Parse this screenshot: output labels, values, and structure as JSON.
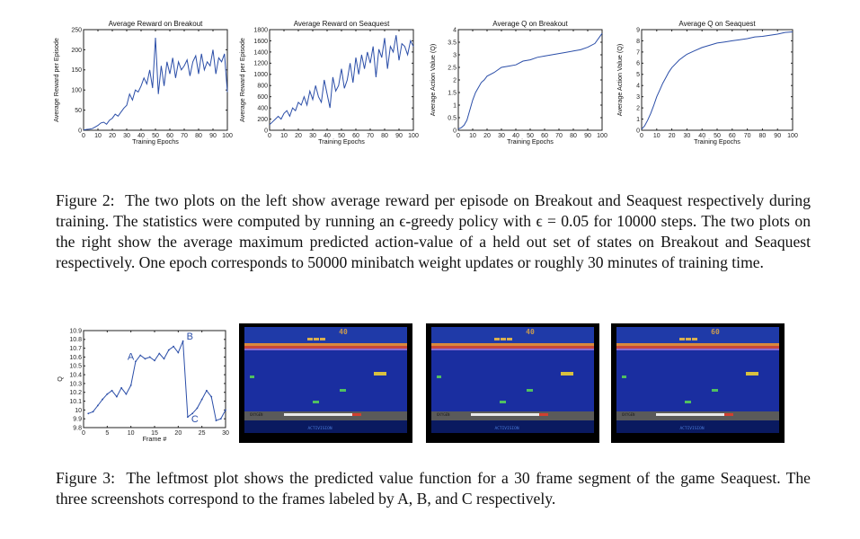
{
  "figure2": {
    "caption_label": "Figure 2:",
    "caption_text": "The two plots on the left show average reward per episode on Breakout and Seaquest respectively during training. The statistics were computed by running an ϵ-greedy policy with ϵ = 0.05 for 10000 steps. The two plots on the right show the average maximum predicted action-value of a held out set of states on Breakout and Seaquest respectively. One epoch corresponds to 50000 minibatch weight updates or roughly 30 minutes of training time."
  },
  "figure3": {
    "caption_label": "Figure 3:",
    "caption_text": "The leftmost plot shows the predicted value function for a 30 frame segment of the game Seaquest. The three screenshots correspond to the frames labeled by A, B, and C respectively."
  },
  "screenshots": [
    {
      "score": "40",
      "oxygen_label": "OXYGEN",
      "brand": "ACTIVISION"
    },
    {
      "score": "40",
      "oxygen_label": "OXYGEN",
      "brand": "ACTIVISION"
    },
    {
      "score": "60",
      "oxygen_label": "OXYGEN",
      "brand": "ACTIVISION"
    }
  ],
  "colors": {
    "series": "#2b4ea8",
    "sky": "#1f3aa8",
    "water": "#1a2ea0",
    "sunset_red": "#c8463a",
    "sunset_orange": "#d98a3c",
    "seabed": "#5a5a5a"
  },
  "chart_data": [
    {
      "type": "line",
      "title": "Average Reward on Breakout",
      "xlabel": "Training Epochs",
      "ylabel": "Average Reward per Episode",
      "xlim": [
        0,
        100
      ],
      "ylim": [
        0,
        250
      ],
      "xticks": [
        0,
        10,
        20,
        30,
        40,
        50,
        60,
        70,
        80,
        90,
        100
      ],
      "yticks": [
        0,
        50,
        100,
        150,
        200,
        250
      ],
      "x": [
        0,
        2,
        4,
        6,
        8,
        10,
        12,
        14,
        16,
        18,
        20,
        22,
        24,
        26,
        28,
        30,
        32,
        34,
        36,
        38,
        40,
        42,
        44,
        46,
        48,
        50,
        52,
        54,
        56,
        58,
        60,
        62,
        64,
        66,
        68,
        70,
        72,
        74,
        76,
        78,
        80,
        82,
        84,
        86,
        88,
        90,
        92,
        94,
        96,
        98,
        100
      ],
      "values": [
        1,
        2,
        3,
        4,
        8,
        12,
        18,
        20,
        15,
        25,
        30,
        40,
        35,
        45,
        55,
        62,
        90,
        75,
        100,
        95,
        110,
        130,
        115,
        150,
        105,
        230,
        90,
        160,
        110,
        170,
        140,
        180,
        130,
        170,
        150,
        160,
        175,
        135,
        170,
        185,
        140,
        190,
        150,
        170,
        160,
        200,
        140,
        180,
        170,
        190,
        95
      ]
    },
    {
      "type": "line",
      "title": "Average Reward on Seaquest",
      "xlabel": "Training Epochs",
      "ylabel": "Average Reward per Episode",
      "xlim": [
        0,
        100
      ],
      "ylim": [
        0,
        1800
      ],
      "xticks": [
        0,
        10,
        20,
        30,
        40,
        50,
        60,
        70,
        80,
        90,
        100
      ],
      "yticks": [
        0,
        200,
        400,
        600,
        800,
        1000,
        1200,
        1400,
        1600,
        1800
      ],
      "x": [
        0,
        2,
        4,
        6,
        8,
        10,
        12,
        14,
        16,
        18,
        20,
        22,
        24,
        26,
        28,
        30,
        32,
        34,
        36,
        38,
        40,
        42,
        44,
        46,
        48,
        50,
        52,
        54,
        56,
        58,
        60,
        62,
        64,
        66,
        68,
        70,
        72,
        74,
        76,
        78,
        80,
        82,
        84,
        86,
        88,
        90,
        92,
        94,
        96,
        98,
        100
      ],
      "values": [
        100,
        150,
        200,
        250,
        200,
        300,
        350,
        250,
        400,
        350,
        500,
        450,
        600,
        450,
        700,
        550,
        800,
        600,
        500,
        900,
        650,
        400,
        950,
        700,
        800,
        1100,
        750,
        900,
        1200,
        850,
        1300,
        1000,
        1350,
        1100,
        1400,
        1200,
        1500,
        950,
        1450,
        1300,
        1650,
        1100,
        1500,
        1400,
        1700,
        1250,
        1550,
        1500,
        1350,
        1600,
        1500
      ]
    },
    {
      "type": "line",
      "title": "Average Q on Breakout",
      "xlabel": "Training Epochs",
      "ylabel": "Average Action Value (Q)",
      "xlim": [
        0,
        100
      ],
      "ylim": [
        0,
        4
      ],
      "xticks": [
        0,
        10,
        20,
        30,
        40,
        50,
        60,
        70,
        80,
        90,
        100
      ],
      "yticks": [
        0,
        0.5,
        1,
        1.5,
        2,
        2.5,
        3,
        3.5,
        4
      ],
      "x": [
        0,
        2,
        4,
        6,
        8,
        10,
        12,
        14,
        16,
        18,
        20,
        25,
        30,
        35,
        40,
        45,
        50,
        55,
        60,
        65,
        70,
        75,
        80,
        85,
        90,
        95,
        100
      ],
      "values": [
        0.05,
        0.1,
        0.2,
        0.4,
        0.8,
        1.2,
        1.5,
        1.7,
        1.9,
        2.0,
        2.15,
        2.3,
        2.5,
        2.55,
        2.6,
        2.75,
        2.8,
        2.9,
        2.95,
        3.0,
        3.05,
        3.1,
        3.15,
        3.2,
        3.3,
        3.45,
        3.85
      ]
    },
    {
      "type": "line",
      "title": "Average Q on Seaquest",
      "xlabel": "Training Epochs",
      "ylabel": "Average Action Value (Q)",
      "xlim": [
        0,
        100
      ],
      "ylim": [
        0,
        9
      ],
      "xticks": [
        0,
        10,
        20,
        30,
        40,
        50,
        60,
        70,
        80,
        90,
        100
      ],
      "yticks": [
        0,
        1,
        2,
        3,
        4,
        5,
        6,
        7,
        8,
        9
      ],
      "x": [
        0,
        2,
        4,
        6,
        8,
        10,
        12,
        14,
        16,
        18,
        20,
        25,
        30,
        35,
        40,
        45,
        50,
        55,
        60,
        65,
        70,
        75,
        80,
        85,
        90,
        95,
        100
      ],
      "values": [
        0.1,
        0.4,
        0.9,
        1.5,
        2.2,
        3.0,
        3.6,
        4.2,
        4.7,
        5.2,
        5.6,
        6.3,
        6.8,
        7.1,
        7.4,
        7.6,
        7.8,
        7.9,
        8.0,
        8.1,
        8.2,
        8.35,
        8.4,
        8.5,
        8.6,
        8.75,
        8.8
      ]
    },
    {
      "type": "line",
      "xlabel": "Frame #",
      "ylabel": "Q",
      "xlim": [
        0,
        30
      ],
      "ylim": [
        9.8,
        10.9
      ],
      "xticks": [
        0,
        5,
        10,
        15,
        20,
        25,
        30
      ],
      "yticks": [
        9.8,
        9.9,
        10,
        10.1,
        10.2,
        10.3,
        10.4,
        10.5,
        10.6,
        10.7,
        10.8,
        10.9
      ],
      "x": [
        1,
        2,
        3,
        4,
        5,
        6,
        7,
        8,
        9,
        10,
        11,
        12,
        13,
        14,
        15,
        16,
        17,
        18,
        19,
        20,
        21,
        22,
        23,
        24,
        25,
        26,
        27,
        28,
        29,
        30
      ],
      "values": [
        9.96,
        9.98,
        10.05,
        10.12,
        10.18,
        10.22,
        10.15,
        10.25,
        10.18,
        10.28,
        10.55,
        10.62,
        10.58,
        10.6,
        10.56,
        10.64,
        10.58,
        10.68,
        10.72,
        10.65,
        10.78,
        9.92,
        9.96,
        10.02,
        10.12,
        10.22,
        10.15,
        9.88,
        9.9,
        10.0
      ],
      "annotations": [
        {
          "label": "A",
          "x": 11,
          "y": 10.55
        },
        {
          "label": "B",
          "x": 21,
          "y": 10.78
        },
        {
          "label": "C",
          "x": 22,
          "y": 9.92
        }
      ]
    }
  ]
}
